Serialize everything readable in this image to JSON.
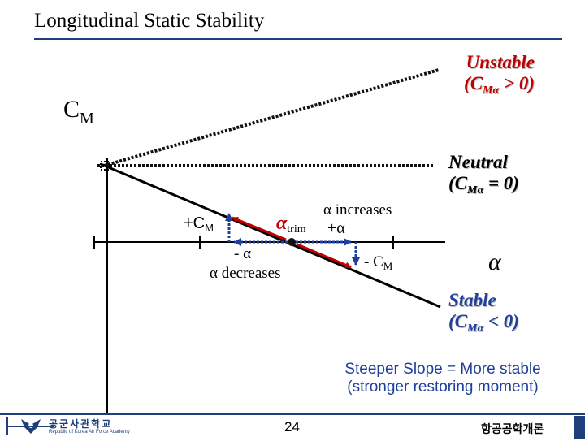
{
  "title": "Longitudinal Static Stability",
  "y_axis_label": {
    "main": "C",
    "sub": "M"
  },
  "x_axis_label": "α",
  "curves": {
    "unstable": {
      "line1": "Unstable",
      "line2_open": "(C",
      "line2_sub": "Mα",
      "line2_close": " > 0)",
      "color": "#c00000"
    },
    "neutral": {
      "line1": "Neutral",
      "line2_open": "(C",
      "line2_sub": "Mα",
      "line2_close": " = 0)",
      "color": "#000000"
    },
    "stable": {
      "line1": "Stable",
      "line2_open": "(C",
      "line2_sub": "Mα",
      "line2_close": " < 0)",
      "color": "#1f3f9a"
    }
  },
  "annotations": {
    "alpha_trim": {
      "main": "α",
      "sub": "trim"
    },
    "plus_cm": {
      "main": "+C",
      "sub": "M"
    },
    "minus_alpha": "- α",
    "alpha_decreases": "α decreases",
    "alpha_increases": "α increases",
    "plus_alpha": "+α",
    "minus_cm": {
      "main": "- C",
      "sub": "M"
    }
  },
  "note": {
    "line1": "Steeper Slope = More stable",
    "line2": "(stronger restoring moment)"
  },
  "footer": {
    "page_number": "24",
    "course_name": "항공공학개론",
    "logo_text": "공군사관학교",
    "logo_subtext": "Republic of Korea Air Force Academy"
  },
  "colors": {
    "accent": "#1f3f7a",
    "arrow_red": "#c00000",
    "arrow_blue": "#1f3f9a"
  }
}
